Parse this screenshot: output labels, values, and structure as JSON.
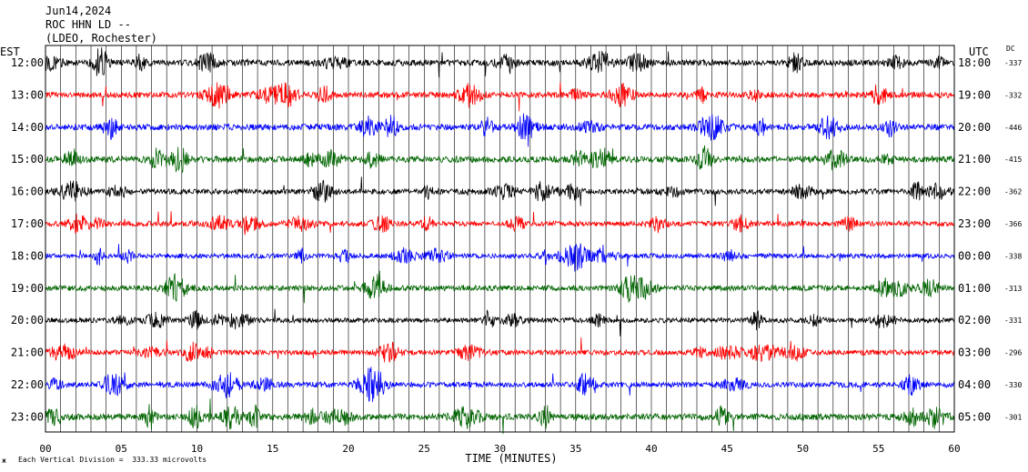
{
  "header": {
    "line1": "Jun14,2024",
    "line2": "ROC HHN LD --",
    "line3": "(LDEO, Rochester)"
  },
  "left_axis_title": "EST",
  "right_axis_title": "UTC",
  "dc_title": "DC",
  "footer": {
    "scale_note": "Each Vertical Division =  333.33 microvolts",
    "corner_mark": "ж"
  },
  "chart_data": {
    "type": "line",
    "title": "Jun14,2024 ROC HHN LD -- (LDEO, Rochester)",
    "xlabel": "TIME (MINUTES)",
    "ylabel": "",
    "xlim": [
      0,
      60
    ],
    "x_ticks": [
      "00",
      "05",
      "10",
      "15",
      "20",
      "25",
      "30",
      "35",
      "40",
      "45",
      "50",
      "55",
      "60"
    ],
    "grid": true,
    "vertical_division_microvolts": 333.33,
    "trace_colors": [
      "#000000",
      "#ff0000",
      "#0000ff",
      "#006400"
    ],
    "rows": [
      {
        "est": "12:00",
        "utc": "18:00",
        "dc": "-337",
        "color": "#000000",
        "amplitude": 0.95
      },
      {
        "est": "13:00",
        "utc": "19:00",
        "dc": "-332",
        "color": "#ff0000",
        "amplitude": 0.9
      },
      {
        "est": "14:00",
        "utc": "20:00",
        "dc": "-446",
        "color": "#0000ff",
        "amplitude": 0.95
      },
      {
        "est": "15:00",
        "utc": "21:00",
        "dc": "-415",
        "color": "#006400",
        "amplitude": 1.0
      },
      {
        "est": "16:00",
        "utc": "22:00",
        "dc": "-362",
        "color": "#000000",
        "amplitude": 0.85
      },
      {
        "est": "17:00",
        "utc": "23:00",
        "dc": "-366",
        "color": "#ff0000",
        "amplitude": 0.8
      },
      {
        "est": "18:00",
        "utc": "00:00",
        "dc": "-338",
        "color": "#0000ff",
        "amplitude": 0.75
      },
      {
        "est": "19:00",
        "utc": "01:00",
        "dc": "-313",
        "color": "#006400",
        "amplitude": 0.85
      },
      {
        "est": "20:00",
        "utc": "02:00",
        "dc": "-331",
        "color": "#000000",
        "amplitude": 0.75
      },
      {
        "est": "21:00",
        "utc": "03:00",
        "dc": "-296",
        "color": "#ff0000",
        "amplitude": 0.8
      },
      {
        "est": "22:00",
        "utc": "04:00",
        "dc": "-330",
        "color": "#0000ff",
        "amplitude": 0.85
      },
      {
        "est": "23:00",
        "utc": "05:00",
        "dc": "-301",
        "color": "#006400",
        "amplitude": 1.0
      }
    ]
  }
}
